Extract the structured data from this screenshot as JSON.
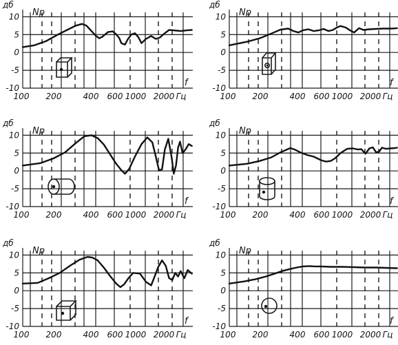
{
  "figure": {
    "colors": {
      "ink": "#111111",
      "background": "#ffffff"
    }
  },
  "chart_data": [
    {
      "type": "line",
      "panel": "top-left",
      "speaker_shape": "rectangular box, driver on front face",
      "ylabel": "дб",
      "series_label": "Np",
      "xlabel_unit": "Гц",
      "corner_label": "f",
      "x_axis_scale": "log",
      "x_tick_labels": [
        "100",
        "200",
        "400",
        "600",
        "1000",
        "2000",
        "Гц"
      ],
      "y_tick_labels": [
        "10",
        "5",
        "0",
        "-5",
        "-10"
      ],
      "ylim": [
        -10,
        12
      ],
      "xlim": [
        100,
        4600
      ],
      "grid": true,
      "series": [
        {
          "x": [
            100,
            130,
            170,
            220,
            280,
            330,
            380,
            420,
            470,
            520,
            560,
            600,
            680,
            760,
            820,
            880,
            920,
            1000,
            1060,
            1150,
            1250,
            1350,
            1450,
            1600,
            1800,
            2000,
            2200,
            2400,
            2700,
            3000,
            3500,
            4000,
            4500
          ],
          "y": [
            1.5,
            2.0,
            3.2,
            5.0,
            6.5,
            7.5,
            8.0,
            7.5,
            6.0,
            4.6,
            4.0,
            4.4,
            5.7,
            5.9,
            5.1,
            4.0,
            2.6,
            2.2,
            3.6,
            5.0,
            5.4,
            4.3,
            2.6,
            3.8,
            4.6,
            3.8,
            4.2,
            5.2,
            6.3,
            6.2,
            6.0,
            6.2,
            6.3
          ]
        }
      ]
    },
    {
      "type": "line",
      "panel": "top-right",
      "speaker_shape": "rectangular box, driver on side face",
      "ylabel": "дб",
      "series_label": "Np",
      "xlabel_unit": "Гц",
      "corner_label": "f",
      "x_axis_scale": "log",
      "x_tick_labels": [
        "100",
        "200",
        "400",
        "600",
        "1000",
        "2000",
        "Гц"
      ],
      "y_tick_labels": [
        "10",
        "5",
        "0",
        "-5",
        "-10"
      ],
      "ylim": [
        -10,
        12
      ],
      "xlim": [
        100,
        4600
      ],
      "grid": true,
      "series": [
        {
          "x": [
            100,
            150,
            200,
            260,
            320,
            380,
            430,
            480,
            530,
            600,
            680,
            760,
            850,
            950,
            1050,
            1150,
            1250,
            1400,
            1550,
            1700,
            1900,
            2100,
            2400,
            2800,
            3300,
            4000,
            4500
          ],
          "y": [
            2.0,
            3.0,
            4.0,
            5.3,
            6.4,
            6.7,
            6.0,
            5.6,
            6.2,
            6.5,
            6.0,
            6.2,
            6.6,
            6.0,
            6.3,
            7.0,
            7.4,
            7.0,
            6.2,
            5.6,
            6.8,
            6.3,
            6.5,
            6.6,
            6.7,
            6.7,
            6.8
          ]
        }
      ]
    },
    {
      "type": "line",
      "panel": "middle-left",
      "speaker_shape": "horizontal cylinder",
      "ylabel": "дб",
      "series_label": "Np",
      "xlabel_unit": "Гц",
      "corner_label": "f",
      "x_axis_scale": "log",
      "x_tick_labels": [
        "100",
        "200",
        "400",
        "600",
        "1000",
        "2000",
        "Гц"
      ],
      "y_tick_labels": [
        "10",
        "5",
        "0",
        "-5",
        "-10"
      ],
      "ylim": [
        -10,
        12
      ],
      "xlim": [
        100,
        4600
      ],
      "grid": true,
      "series": [
        {
          "x": [
            100,
            150,
            200,
            260,
            330,
            400,
            470,
            540,
            620,
            720,
            820,
            920,
            1000,
            1100,
            1250,
            1450,
            1650,
            1850,
            2000,
            2150,
            2300,
            2450,
            2650,
            2850,
            3000,
            3150,
            3300,
            3450,
            3650,
            3900,
            4200,
            4500
          ],
          "y": [
            1.5,
            2.2,
            3.5,
            5.2,
            7.8,
            9.7,
            10.0,
            9.2,
            7.4,
            4.5,
            2.0,
            0.2,
            -0.8,
            0.6,
            4.0,
            7.5,
            9.4,
            8.0,
            4.0,
            0.2,
            0.4,
            6.0,
            9.0,
            4.0,
            -0.8,
            1.5,
            6.5,
            8.2,
            5.0,
            6.0,
            7.5,
            7.0
          ]
        }
      ]
    },
    {
      "type": "line",
      "panel": "middle-right",
      "speaker_shape": "vertical cylinder",
      "ylabel": "дб",
      "series_label": "Np",
      "xlabel_unit": "Гц",
      "corner_label": "f",
      "x_axis_scale": "log",
      "x_tick_labels": [
        "100",
        "200",
        "400",
        "600",
        "1000",
        "2000",
        "Гц"
      ],
      "y_tick_labels": [
        "10",
        "5",
        "0",
        "-5",
        "-10"
      ],
      "ylim": [
        -10,
        12
      ],
      "xlim": [
        100,
        4600
      ],
      "grid": true,
      "series": [
        {
          "x": [
            100,
            150,
            200,
            260,
            320,
            370,
            400,
            440,
            500,
            580,
            680,
            800,
            900,
            1000,
            1100,
            1250,
            1450,
            1650,
            1850,
            2000,
            2200,
            2400,
            2600,
            2800,
            3000,
            3200,
            3500,
            3900,
            4300,
            4500
          ],
          "y": [
            1.5,
            2.0,
            2.8,
            3.8,
            5.2,
            6.0,
            6.4,
            6.0,
            5.2,
            4.5,
            4.0,
            3.0,
            2.6,
            2.8,
            3.5,
            5.0,
            6.2,
            6.3,
            6.0,
            6.1,
            4.8,
            6.3,
            6.6,
            5.2,
            5.4,
            6.5,
            6.2,
            6.3,
            6.4,
            6.5
          ]
        }
      ]
    },
    {
      "type": "line",
      "panel": "bottom-left",
      "speaker_shape": "cube",
      "ylabel": "дб",
      "series_label": "Np",
      "xlabel_unit": "Гц",
      "corner_label": "f",
      "x_axis_scale": "log",
      "x_tick_labels": [
        "100",
        "200",
        "400",
        "600",
        "1000",
        "2000",
        "Гц"
      ],
      "y_tick_labels": [
        "10",
        "5",
        "0",
        "-5",
        "-10"
      ],
      "ylim": [
        -10,
        12
      ],
      "xlim": [
        100,
        4600
      ],
      "grid": true,
      "series": [
        {
          "x": [
            100,
            140,
            180,
            230,
            290,
            360,
            430,
            480,
            540,
            620,
            720,
            820,
            900,
            980,
            1080,
            1200,
            1400,
            1600,
            1800,
            1950,
            2100,
            2300,
            2500,
            2700,
            2900,
            3100,
            3300,
            3500,
            3800,
            4100,
            4500
          ],
          "y": [
            2.0,
            2.2,
            3.5,
            5.0,
            7.0,
            8.7,
            9.5,
            9.3,
            8.5,
            6.5,
            4.0,
            2.0,
            1.0,
            1.8,
            3.5,
            5.0,
            4.8,
            2.5,
            1.5,
            4.0,
            6.5,
            8.5,
            7.0,
            3.5,
            3.0,
            5.0,
            4.0,
            5.5,
            3.5,
            5.8,
            4.8
          ]
        }
      ]
    },
    {
      "type": "line",
      "panel": "bottom-right",
      "speaker_shape": "sphere",
      "ylabel": "дб",
      "series_label": "Np",
      "xlabel_unit": "Гц",
      "corner_label": "f",
      "x_axis_scale": "log",
      "x_tick_labels": [
        "100",
        "200",
        "400",
        "600",
        "1000",
        "2000",
        "Гц"
      ],
      "y_tick_labels": [
        "10",
        "5",
        "0",
        "-5",
        "-10"
      ],
      "ylim": [
        -10,
        12
      ],
      "xlim": [
        100,
        4600
      ],
      "grid": true,
      "series": [
        {
          "x": [
            100,
            140,
            180,
            230,
            280,
            340,
            400,
            460,
            530,
            620,
            700,
            800,
            1000,
            1300,
            1700,
            2200,
            2800,
            3500,
            4500
          ],
          "y": [
            2.0,
            2.6,
            3.2,
            4.0,
            4.8,
            5.6,
            6.1,
            6.5,
            6.8,
            6.9,
            6.8,
            6.8,
            6.7,
            6.7,
            6.6,
            6.5,
            6.5,
            6.4,
            6.3
          ]
        }
      ]
    }
  ]
}
